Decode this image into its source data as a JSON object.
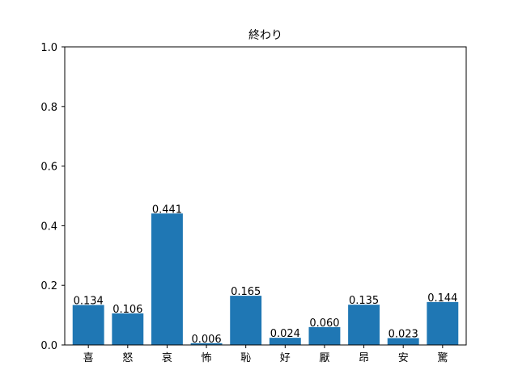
{
  "chart_data": {
    "type": "bar",
    "title": "終わり",
    "xlabel": "",
    "ylabel": "",
    "categories": [
      "喜",
      "怒",
      "哀",
      "怖",
      "恥",
      "好",
      "厭",
      "昂",
      "安",
      "驚"
    ],
    "values": [
      0.134,
      0.106,
      0.441,
      0.006,
      0.165,
      0.024,
      0.06,
      0.135,
      0.023,
      0.144
    ],
    "value_labels": [
      "0.134",
      "0.106",
      "0.441",
      "0.006",
      "0.165",
      "0.024",
      "0.060",
      "0.135",
      "0.023",
      "0.144"
    ],
    "ylim": [
      0,
      1.0
    ],
    "yticks": [
      0.0,
      0.2,
      0.4,
      0.6,
      0.8,
      1.0
    ],
    "ytick_labels": [
      "0.0",
      "0.2",
      "0.4",
      "0.6",
      "0.8",
      "1.0"
    ],
    "grid": false,
    "legend": "none",
    "bar_color": "#1f77b4"
  }
}
